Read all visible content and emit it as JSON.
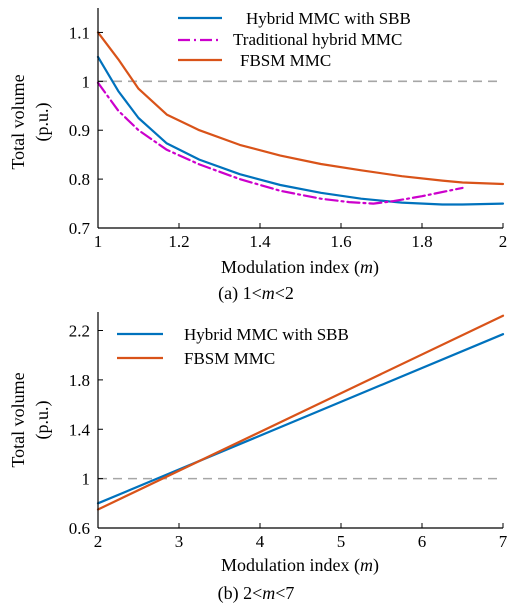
{
  "chart_data": [
    {
      "type": "line",
      "caption_prefix": "(a) 1<",
      "caption_var": "m",
      "caption_suffix": "<2",
      "xlabel": "Modulation index (",
      "xlabel_var": "m",
      "xlabel_end": ")",
      "ylabel_line1": "Total volume",
      "ylabel_line2": "(p.u.)",
      "xlim": [
        1,
        2
      ],
      "ylim": [
        0.7,
        1.15
      ],
      "xticks": [
        1,
        1.2,
        1.4,
        1.6,
        1.8,
        2
      ],
      "yticks": [
        0.7,
        0.8,
        0.9,
        1,
        1.1
      ],
      "xtick_labels": [
        "1",
        "1.2",
        "1.4",
        "1.6",
        "1.8",
        "2"
      ],
      "ytick_labels": [
        "0.7",
        "0.8",
        "0.9",
        "1",
        "1.1"
      ],
      "reference_line_y": 1,
      "legend_position": "top-right",
      "series": [
        {
          "name": "Hybrid MMC with SBB",
          "color": "#0072BD",
          "dash": "solid",
          "x": [
            1.0,
            1.05,
            1.1,
            1.17,
            1.25,
            1.35,
            1.45,
            1.55,
            1.65,
            1.75,
            1.85,
            1.9,
            2.0
          ],
          "y": [
            1.05,
            0.98,
            0.925,
            0.873,
            0.84,
            0.81,
            0.788,
            0.772,
            0.76,
            0.752,
            0.748,
            0.748,
            0.75
          ]
        },
        {
          "name": "Traditional hybrid MMC",
          "color": "#CC00CC",
          "dash": "dashdot",
          "x": [
            1.0,
            1.05,
            1.1,
            1.17,
            1.25,
            1.35,
            1.45,
            1.55,
            1.62,
            1.68,
            1.73,
            1.8,
            1.9
          ],
          "y": [
            0.997,
            0.94,
            0.9,
            0.86,
            0.83,
            0.8,
            0.776,
            0.76,
            0.753,
            0.75,
            0.755,
            0.765,
            0.782
          ]
        },
        {
          "name": "FBSM MMC",
          "color": "#D95319",
          "dash": "solid",
          "x": [
            1.0,
            1.05,
            1.1,
            1.17,
            1.25,
            1.35,
            1.45,
            1.55,
            1.65,
            1.75,
            1.85,
            1.9,
            2.0
          ],
          "y": [
            1.1,
            1.045,
            0.985,
            0.932,
            0.9,
            0.87,
            0.848,
            0.831,
            0.818,
            0.806,
            0.797,
            0.793,
            0.79
          ]
        }
      ]
    },
    {
      "type": "line",
      "caption_prefix": "(b) 2<",
      "caption_var": "m",
      "caption_suffix": "<7",
      "xlabel": "Modulation index (",
      "xlabel_var": "m",
      "xlabel_end": ")",
      "ylabel_line1": "Total volume",
      "ylabel_line2": "(p.u.)",
      "xlim": [
        2,
        7
      ],
      "ylim": [
        0.6,
        2.35
      ],
      "xticks": [
        2,
        3,
        4,
        5,
        6,
        7
      ],
      "yticks": [
        0.6,
        1,
        1.4,
        1.8,
        2.2
      ],
      "xtick_labels": [
        "2",
        "3",
        "4",
        "5",
        "6",
        "7"
      ],
      "ytick_labels": [
        "0.6",
        "1",
        "1.4",
        "1.8",
        "2.2"
      ],
      "reference_line_y": 1,
      "legend_position": "top-left",
      "series": [
        {
          "name": "Hybrid MMC with SBB",
          "color": "#0072BD",
          "dash": "solid",
          "x": [
            2,
            7
          ],
          "y": [
            0.8,
            2.17
          ]
        },
        {
          "name": "FBSM MMC",
          "color": "#D95319",
          "dash": "solid",
          "x": [
            2,
            7
          ],
          "y": [
            0.75,
            2.32
          ]
        }
      ]
    }
  ]
}
